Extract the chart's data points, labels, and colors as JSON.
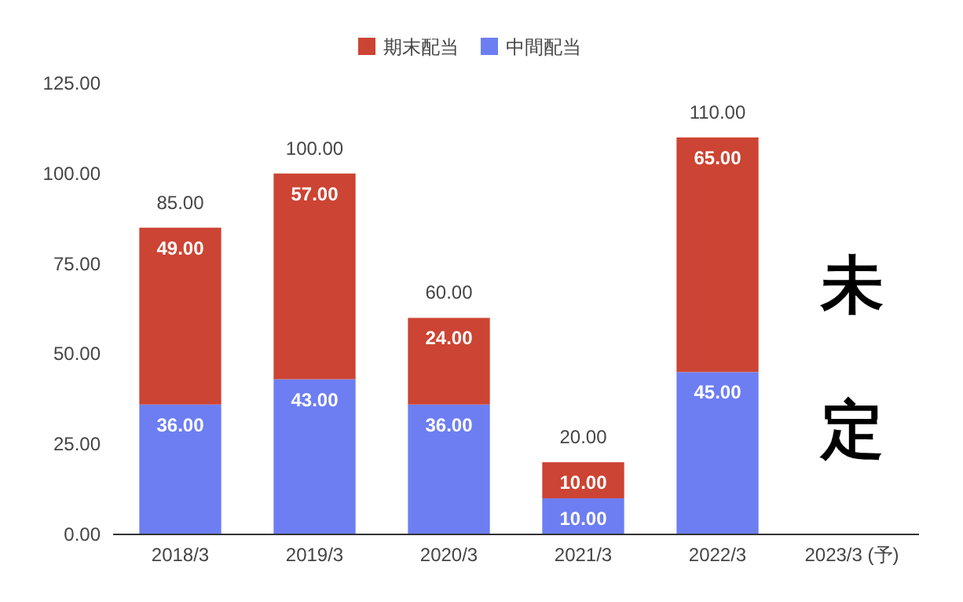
{
  "chart_data": {
    "type": "bar",
    "stacked": true,
    "categories": [
      "2018/3",
      "2019/3",
      "2020/3",
      "2021/3",
      "2022/3",
      "2023/3 (予)"
    ],
    "series": [
      {
        "name": "中間配当",
        "color": "#6d7ef2",
        "values": [
          36,
          43,
          36,
          10,
          45,
          null
        ],
        "value_labels": [
          "36.00",
          "43.00",
          "36.00",
          "10.00",
          "45.00",
          null
        ]
      },
      {
        "name": "期末配当",
        "color": "#cc4433",
        "values": [
          49,
          57,
          24,
          10,
          65,
          null
        ],
        "value_labels": [
          "49.00",
          "57.00",
          "24.00",
          "10.00",
          "65.00",
          null
        ]
      }
    ],
    "totals": [
      "85.00",
      "100.00",
      "60.00",
      "20.00",
      "110.00",
      null
    ],
    "ylim": [
      0,
      125
    ],
    "yticks": [
      {
        "value": 0,
        "label": "0.00"
      },
      {
        "value": 25,
        "label": "25.00"
      },
      {
        "value": 50,
        "label": "50.00"
      },
      {
        "value": 75,
        "label": "75.00"
      },
      {
        "value": 100,
        "label": "100.00"
      },
      {
        "value": 125,
        "label": "125.00"
      }
    ],
    "legend": "top",
    "annotations": [
      "未定"
    ]
  }
}
